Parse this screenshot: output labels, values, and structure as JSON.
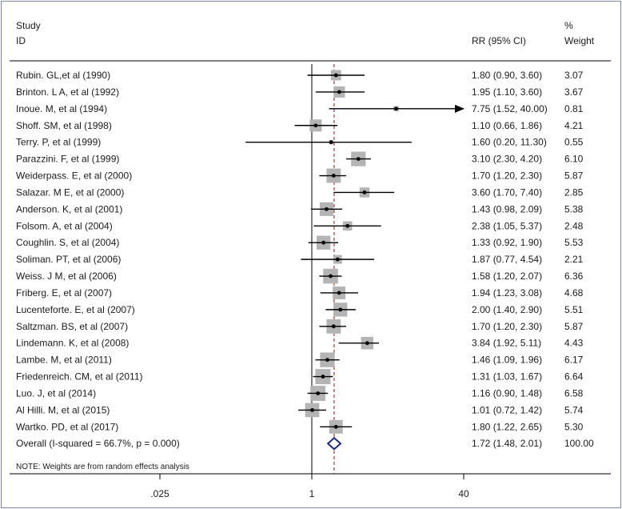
{
  "chart_data": {
    "type": "forest",
    "headers": {
      "study_line1": "Study",
      "study_line2": "ID",
      "rr": "RR (95% CI)",
      "weight_line1": "%",
      "weight_line2": "Weight"
    },
    "xscale": "log",
    "xlim": [
      0.025,
      40
    ],
    "ticks": [
      0.025,
      1,
      40
    ],
    "tick_labels": [
      ".025",
      "1",
      "40"
    ],
    "null_value": 1,
    "studies": [
      {
        "label": "Rubin. GL,et al (1990)",
        "rr": 1.8,
        "lo": 0.9,
        "hi": 3.6,
        "ci_text": "1.80 (0.90, 3.60)",
        "weight": 3.07,
        "weight_text": "3.07"
      },
      {
        "label": "Brinton. L A, et al (1992)",
        "rr": 1.95,
        "lo": 1.1,
        "hi": 3.6,
        "ci_text": "1.95 (1.10, 3.60)",
        "weight": 3.67,
        "weight_text": "3.67"
      },
      {
        "label": "Inoue. M, et al (1994)",
        "rr": 7.75,
        "lo": 1.52,
        "hi": 40.0,
        "ci_text": "7.75 (1.52, 40.00)",
        "weight": 0.81,
        "weight_text": "0.81",
        "arrow_right": true
      },
      {
        "label": "Shoff. SM, et al  (1998)",
        "rr": 1.1,
        "lo": 0.66,
        "hi": 1.86,
        "ci_text": "1.10 (0.66, 1.86)",
        "weight": 4.21,
        "weight_text": "4.21"
      },
      {
        "label": "Terry. P, et al (1999)",
        "rr": 1.6,
        "lo": 0.2,
        "hi": 11.3,
        "ci_text": "1.60 (0.20, 11.30)",
        "weight": 0.55,
        "weight_text": "0.55"
      },
      {
        "label": "Parazzini. F, et al (1999)",
        "rr": 3.1,
        "lo": 2.3,
        "hi": 4.2,
        "ci_text": "3.10 (2.30, 4.20)",
        "weight": 6.1,
        "weight_text": "6.10"
      },
      {
        "label": "Weiderpass. E, et al (2000)",
        "rr": 1.7,
        "lo": 1.2,
        "hi": 2.3,
        "ci_text": "1.70 (1.20, 2.30)",
        "weight": 5.87,
        "weight_text": "5.87"
      },
      {
        "label": "Salazar. M E, et al (2000)",
        "rr": 3.6,
        "lo": 1.7,
        "hi": 7.4,
        "ci_text": "3.60 (1.70, 7.40)",
        "weight": 2.85,
        "weight_text": "2.85"
      },
      {
        "label": "Anderson. K, et al (2001)",
        "rr": 1.43,
        "lo": 0.98,
        "hi": 2.09,
        "ci_text": "1.43 (0.98, 2.09)",
        "weight": 5.38,
        "weight_text": "5.38"
      },
      {
        "label": "Folsom. A, et al (2004)",
        "rr": 2.38,
        "lo": 1.05,
        "hi": 5.37,
        "ci_text": "2.38 (1.05, 5.37)",
        "weight": 2.48,
        "weight_text": "2.48"
      },
      {
        "label": "Coughlin. S, et al (2004)",
        "rr": 1.33,
        "lo": 0.92,
        "hi": 1.9,
        "ci_text": "1.33 (0.92, 1.90)",
        "weight": 5.53,
        "weight_text": "5.53"
      },
      {
        "label": "Soliman. PT, et al  (2006)",
        "rr": 1.87,
        "lo": 0.77,
        "hi": 4.54,
        "ci_text": "1.87 (0.77, 4.54)",
        "weight": 2.21,
        "weight_text": "2.21"
      },
      {
        "label": "Weiss. J M, et al (2006)",
        "rr": 1.58,
        "lo": 1.2,
        "hi": 2.07,
        "ci_text": "1.58 (1.20, 2.07)",
        "weight": 6.36,
        "weight_text": "6.36"
      },
      {
        "label": "Friberg. E, et al (2007)",
        "rr": 1.94,
        "lo": 1.23,
        "hi": 3.08,
        "ci_text": "1.94 (1.23, 3.08)",
        "weight": 4.68,
        "weight_text": "4.68"
      },
      {
        "label": "Lucenteforte. E, et al  (2007)",
        "rr": 2.0,
        "lo": 1.4,
        "hi": 2.9,
        "ci_text": "2.00 (1.40, 2.90)",
        "weight": 5.51,
        "weight_text": "5.51"
      },
      {
        "label": "Saltzman. BS, et al (2007)",
        "rr": 1.7,
        "lo": 1.2,
        "hi": 2.3,
        "ci_text": "1.70 (1.20, 2.30)",
        "weight": 5.87,
        "weight_text": "5.87"
      },
      {
        "label": "Lindemann. K, et al (2008)",
        "rr": 3.84,
        "lo": 1.92,
        "hi": 5.11,
        "ci_text": "3.84 (1.92, 5.11)",
        "weight": 4.43,
        "weight_text": "4.43"
      },
      {
        "label": "Lambe. M, et al (2011)",
        "rr": 1.46,
        "lo": 1.09,
        "hi": 1.96,
        "ci_text": "1.46 (1.09, 1.96)",
        "weight": 6.17,
        "weight_text": "6.17"
      },
      {
        "label": "Friedenreich. CM,  et al (2011)",
        "rr": 1.31,
        "lo": 1.03,
        "hi": 1.67,
        "ci_text": "1.31 (1.03, 1.67)",
        "weight": 6.64,
        "weight_text": "6.64"
      },
      {
        "label": "Luo. J, et al  (2014)",
        "rr": 1.16,
        "lo": 0.9,
        "hi": 1.48,
        "ci_text": "1.16 (0.90, 1.48)",
        "weight": 6.58,
        "weight_text": "6.58"
      },
      {
        "label": "Al Hilli. M, et al (2015)",
        "rr": 1.01,
        "lo": 0.72,
        "hi": 1.42,
        "ci_text": "1.01 (0.72, 1.42)",
        "weight": 5.74,
        "weight_text": "5.74"
      },
      {
        "label": "Wartko. PD, et al (2017)",
        "rr": 1.8,
        "lo": 1.22,
        "hi": 2.65,
        "ci_text": "1.80 (1.22, 2.65)",
        "weight": 5.3,
        "weight_text": "5.30"
      }
    ],
    "overall": {
      "label": "Overall  (I-squared = 66.7%, p = 0.000)",
      "rr": 1.72,
      "lo": 1.48,
      "hi": 2.01,
      "ci_text": "1.72 (1.48, 2.01)",
      "weight_text": "100.00"
    },
    "note": "NOTE: Weights are from random effects analysis",
    "colors": {
      "box": "#b4b4b4",
      "ci_line": "#000000",
      "diamond": "#1f2a7a",
      "overall_line": "#8b1a1a",
      "null_line": "#000000",
      "frame": "#7a8aa8"
    }
  }
}
